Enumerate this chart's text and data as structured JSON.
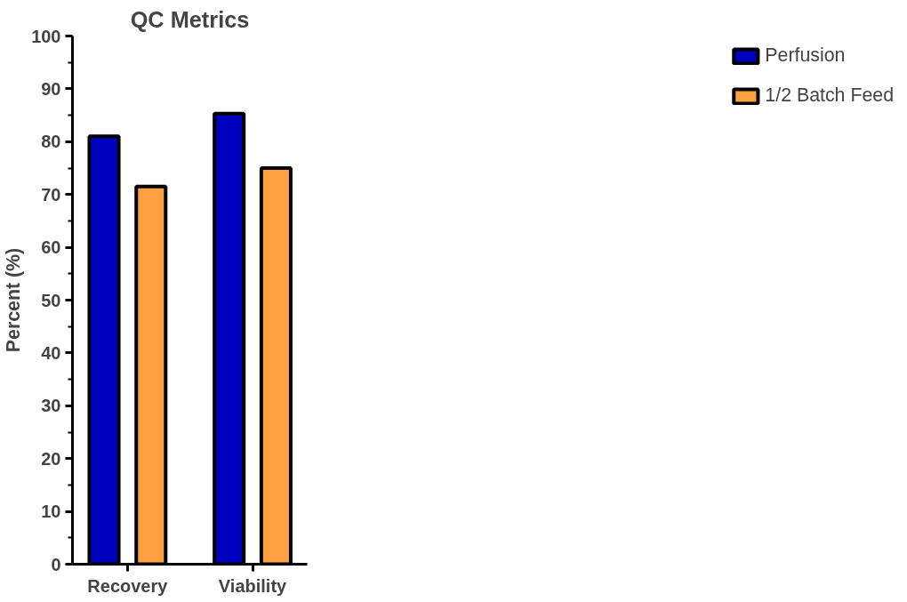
{
  "chart_data": {
    "type": "bar",
    "title": "QC Metrics",
    "ylabel": "Percent (%)",
    "categories": [
      "Recovery",
      "Viability"
    ],
    "series": [
      {
        "name": "Perfusion",
        "color": "#0000c0",
        "values": [
          81,
          85.3
        ]
      },
      {
        "name": "1/2 Batch Feed",
        "color": "#ffa040",
        "values": [
          71.5,
          75
        ]
      }
    ],
    "ylim": [
      0,
      100
    ],
    "yticks": [
      0,
      10,
      20,
      30,
      40,
      50,
      60,
      70,
      80,
      90,
      100
    ],
    "grid": false,
    "legend": "right"
  }
}
